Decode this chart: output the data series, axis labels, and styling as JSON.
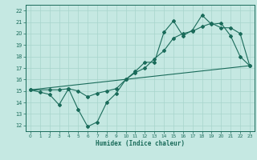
{
  "xlabel": "Humidex (Indice chaleur)",
  "bg_color": "#c5e8e2",
  "grid_color": "#a8d4cc",
  "line_color": "#1a6b5a",
  "xlim": [
    -0.5,
    23.5
  ],
  "ylim": [
    11.5,
    22.5
  ],
  "xticks": [
    0,
    1,
    2,
    3,
    4,
    5,
    6,
    7,
    8,
    9,
    10,
    11,
    12,
    13,
    14,
    15,
    16,
    17,
    18,
    19,
    20,
    21,
    22,
    23
  ],
  "yticks": [
    12,
    13,
    14,
    15,
    16,
    17,
    18,
    19,
    20,
    21,
    22
  ],
  "line1_x": [
    0,
    1,
    2,
    3,
    4,
    5,
    6,
    7,
    8,
    9,
    10,
    11,
    12,
    13,
    14,
    15,
    16,
    17,
    18,
    19,
    20,
    21,
    22,
    23
  ],
  "line1_y": [
    15.1,
    14.9,
    14.7,
    13.8,
    15.2,
    13.4,
    11.9,
    12.3,
    14.0,
    14.8,
    16.0,
    16.7,
    17.5,
    17.5,
    20.1,
    21.1,
    19.8,
    20.3,
    21.6,
    20.8,
    20.9,
    19.8,
    18.0,
    17.2
  ],
  "line2_x": [
    0,
    2,
    3,
    4,
    5,
    6,
    7,
    8,
    9,
    10,
    11,
    12,
    13,
    14,
    15,
    16,
    17,
    18,
    19,
    20,
    21,
    22,
    23
  ],
  "line2_y": [
    15.1,
    15.1,
    15.1,
    15.2,
    15.0,
    14.5,
    14.8,
    15.0,
    15.2,
    16.0,
    16.6,
    17.0,
    17.8,
    18.5,
    19.6,
    20.0,
    20.2,
    20.6,
    20.9,
    20.5,
    20.5,
    20.0,
    17.2
  ],
  "line3_x": [
    0,
    23
  ],
  "line3_y": [
    15.1,
    17.2
  ]
}
